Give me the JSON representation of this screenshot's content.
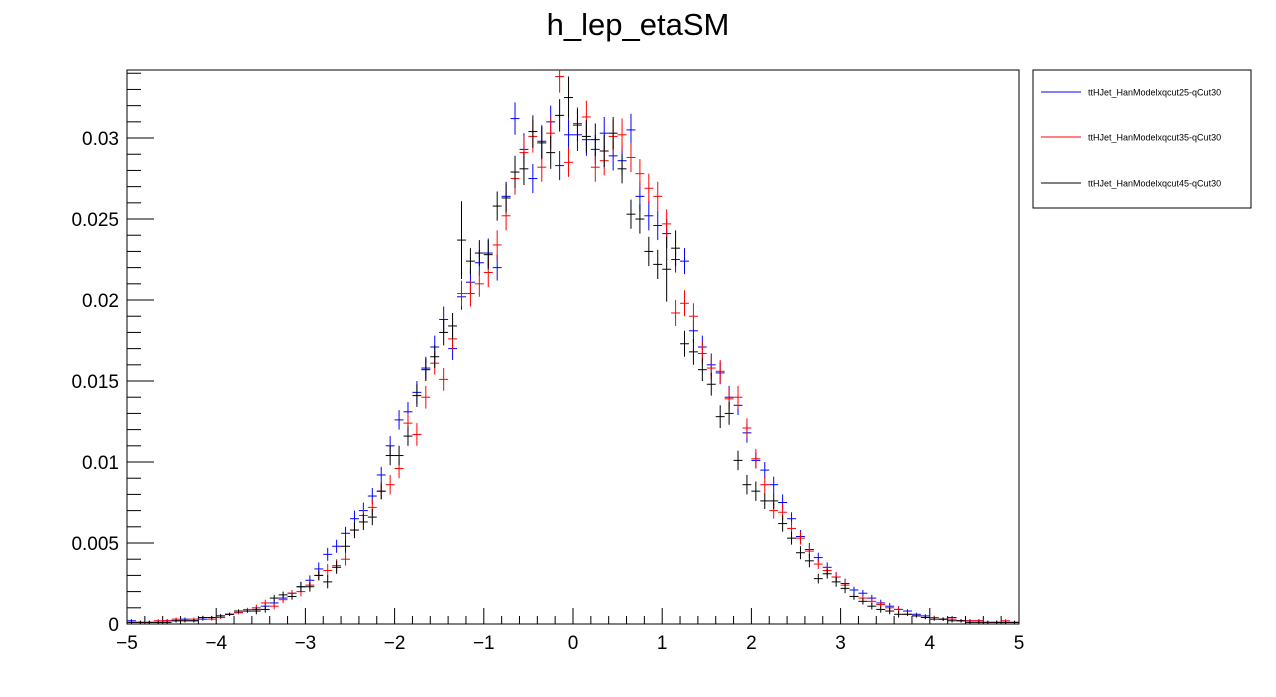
{
  "chart_data": {
    "type": "scatter",
    "title": "h_lep_etaSM",
    "xlabel": "",
    "ylabel": "",
    "xlim": [
      -5,
      5
    ],
    "ylim": [
      0,
      0.0342
    ],
    "x_ticks": [
      "−5",
      "−4",
      "−3",
      "−2",
      "−1",
      "0",
      "1",
      "2",
      "3",
      "4",
      "5"
    ],
    "y_ticks": [
      "0",
      "0.005",
      "0.01",
      "0.015",
      "0.02",
      "0.025",
      "0.03"
    ],
    "grid": false,
    "legend_position": "right",
    "bin_width": 0.1,
    "series": [
      {
        "name": "ttHJet_HanModelxqcut25-qCut30",
        "color": "#0000ff",
        "x": [
          -4.95,
          -4.85,
          -4.75,
          -4.65,
          -4.55,
          -4.45,
          -4.35,
          -4.25,
          -4.15,
          -4.05,
          -3.95,
          -3.85,
          -3.75,
          -3.65,
          -3.55,
          -3.45,
          -3.35,
          -3.25,
          -3.15,
          -3.05,
          -2.95,
          -2.85,
          -2.75,
          -2.65,
          -2.55,
          -2.45,
          -2.35,
          -2.25,
          -2.15,
          -2.05,
          -1.95,
          -1.85,
          -1.75,
          -1.65,
          -1.55,
          -1.45,
          -1.35,
          -1.25,
          -1.15,
          -1.05,
          -0.95,
          -0.85,
          -0.75,
          -0.65,
          -0.55,
          -0.45,
          -0.35,
          -0.25,
          -0.15,
          -0.05,
          0.05,
          0.15,
          0.25,
          0.35,
          0.45,
          0.55,
          0.65,
          0.75,
          0.85,
          0.95,
          1.05,
          1.15,
          1.25,
          1.35,
          1.45,
          1.55,
          1.65,
          1.75,
          1.85,
          1.95,
          2.05,
          2.15,
          2.25,
          2.35,
          2.45,
          2.55,
          2.65,
          2.75,
          2.85,
          2.95,
          3.05,
          3.15,
          3.25,
          3.35,
          3.45,
          3.55,
          3.65,
          3.75,
          3.85,
          3.95,
          4.05,
          4.15,
          4.25,
          4.35,
          4.45,
          4.55,
          4.65,
          4.75,
          4.85,
          4.95
        ],
        "y": [
          0.0002,
          0.0001,
          0.0001,
          0.0001,
          0.0002,
          0.0002,
          0.0003,
          0.0002,
          0.0003,
          0.0004,
          0.0005,
          0.0006,
          0.0007,
          0.0008,
          0.0009,
          0.0011,
          0.0013,
          0.0016,
          0.0019,
          0.0023,
          0.0027,
          0.0034,
          0.0043,
          0.0048,
          0.0056,
          0.0065,
          0.007,
          0.0079,
          0.0092,
          0.011,
          0.0126,
          0.0131,
          0.0143,
          0.0158,
          0.0171,
          0.0188,
          0.017,
          0.0202,
          0.0211,
          0.0223,
          0.0229,
          0.022,
          0.0264,
          0.0312,
          0.0293,
          0.0275,
          0.0298,
          0.031,
          0.0283,
          0.0302,
          0.0302,
          0.0299,
          0.0293,
          0.0303,
          0.0289,
          0.0286,
          0.0305,
          0.0264,
          0.0252,
          0.0246,
          0.0241,
          0.0225,
          0.0224,
          0.0181,
          0.0171,
          0.016,
          0.0155,
          0.014,
          0.0135,
          0.0118,
          0.0101,
          0.0095,
          0.0086,
          0.0075,
          0.0065,
          0.0054,
          0.0046,
          0.0041,
          0.0035,
          0.0029,
          0.0025,
          0.0021,
          0.0019,
          0.0016,
          0.0013,
          0.0011,
          0.0009,
          0.0008,
          0.0006,
          0.0005,
          0.0004,
          0.0003,
          0.0004,
          0.0002,
          0.0002,
          0.0002,
          0.0001,
          0.0001,
          0.0001,
          0.0001
        ],
        "yerr": [
          0.0001,
          0.0001,
          0.0001,
          0.0001,
          0.0001,
          0.0001,
          0.0001,
          0.0001,
          0.0001,
          0.0001,
          0.0001,
          0.0001,
          0.0001,
          0.0001,
          0.0002,
          0.0002,
          0.0002,
          0.0002,
          0.0002,
          0.0003,
          0.0003,
          0.0004,
          0.0004,
          0.0004,
          0.0004,
          0.0005,
          0.0005,
          0.0005,
          0.0005,
          0.0006,
          0.0006,
          0.0006,
          0.0007,
          0.0007,
          0.0007,
          0.0008,
          0.0007,
          0.0008,
          0.0008,
          0.0008,
          0.0009,
          0.0008,
          0.0009,
          0.001,
          0.001,
          0.0009,
          0.001,
          0.001,
          0.0009,
          0.001,
          0.001,
          0.001,
          0.0009,
          0.001,
          0.0009,
          0.0009,
          0.001,
          0.0009,
          0.0009,
          0.0009,
          0.0009,
          0.0008,
          0.0008,
          0.0007,
          0.0007,
          0.0007,
          0.0007,
          0.0007,
          0.0006,
          0.0006,
          0.0005,
          0.0005,
          0.0005,
          0.0005,
          0.0004,
          0.0004,
          0.0004,
          0.0003,
          0.0003,
          0.0003,
          0.0003,
          0.0002,
          0.0002,
          0.0002,
          0.0002,
          0.0002,
          0.0002,
          0.0001,
          0.0001,
          0.0001,
          0.0001,
          0.0001,
          0.0001,
          0.0001,
          0.0001,
          0.0001,
          0.0001,
          0.0001,
          0.0001,
          0.0001
        ]
      },
      {
        "name": "ttHJet_HanModelxqcut35-qCut30",
        "color": "#ff0000",
        "x": [
          -4.95,
          -4.85,
          -4.75,
          -4.65,
          -4.55,
          -4.45,
          -4.35,
          -4.25,
          -4.15,
          -4.05,
          -3.95,
          -3.85,
          -3.75,
          -3.65,
          -3.55,
          -3.45,
          -3.35,
          -3.25,
          -3.15,
          -3.05,
          -2.95,
          -2.85,
          -2.75,
          -2.65,
          -2.55,
          -2.45,
          -2.35,
          -2.25,
          -2.15,
          -2.05,
          -1.95,
          -1.85,
          -1.75,
          -1.65,
          -1.55,
          -1.45,
          -1.35,
          -1.25,
          -1.15,
          -1.05,
          -0.95,
          -0.85,
          -0.75,
          -0.65,
          -0.55,
          -0.45,
          -0.35,
          -0.25,
          -0.15,
          -0.05,
          0.05,
          0.15,
          0.25,
          0.35,
          0.45,
          0.55,
          0.65,
          0.75,
          0.85,
          0.95,
          1.05,
          1.15,
          1.25,
          1.35,
          1.45,
          1.55,
          1.65,
          1.75,
          1.85,
          1.95,
          2.05,
          2.15,
          2.25,
          2.35,
          2.45,
          2.55,
          2.65,
          2.75,
          2.85,
          2.95,
          3.05,
          3.15,
          3.25,
          3.35,
          3.45,
          3.55,
          3.65,
          3.75,
          3.85,
          3.95,
          4.05,
          4.15,
          4.25,
          4.35,
          4.45,
          4.55,
          4.65,
          4.75,
          4.85,
          4.95
        ],
        "y": [
          0.0001,
          0.0001,
          0.0001,
          0.0002,
          0.0002,
          0.0003,
          0.0002,
          0.0003,
          0.0004,
          0.0003,
          0.0004,
          0.0006,
          0.0007,
          0.0009,
          0.001,
          0.0013,
          0.0011,
          0.0015,
          0.0019,
          0.002,
          0.0024,
          0.003,
          0.0033,
          0.0036,
          0.004,
          0.0058,
          0.0067,
          0.0072,
          0.0082,
          0.0086,
          0.0096,
          0.0124,
          0.0117,
          0.014,
          0.0161,
          0.0151,
          0.0176,
          0.0204,
          0.0204,
          0.021,
          0.0217,
          0.0234,
          0.0252,
          0.0275,
          0.0291,
          0.0301,
          0.0282,
          0.0303,
          0.0338,
          0.0285,
          0.0309,
          0.0313,
          0.0282,
          0.0286,
          0.0301,
          0.0302,
          0.0288,
          0.0278,
          0.0269,
          0.0264,
          0.0247,
          0.0192,
          0.0198,
          0.019,
          0.0167,
          0.0158,
          0.0156,
          0.0139,
          0.014,
          0.0121,
          0.0102,
          0.0086,
          0.007,
          0.0069,
          0.0059,
          0.0053,
          0.0045,
          0.0037,
          0.0033,
          0.0029,
          0.0024,
          0.0017,
          0.0016,
          0.0014,
          0.0012,
          0.001,
          0.0009,
          0.0006,
          0.0005,
          0.0004,
          0.0004,
          0.0003,
          0.0003,
          0.0002,
          0.0002,
          0.0002,
          0.0001,
          0.0001,
          0.0002,
          0.0001
        ],
        "yerr": [
          0.0001,
          0.0001,
          0.0001,
          0.0001,
          0.0001,
          0.0001,
          0.0001,
          0.0001,
          0.0001,
          0.0001,
          0.0001,
          0.0001,
          0.0001,
          0.0001,
          0.0002,
          0.0002,
          0.0002,
          0.0002,
          0.0002,
          0.0003,
          0.0003,
          0.0003,
          0.0004,
          0.0004,
          0.0004,
          0.0005,
          0.0005,
          0.0005,
          0.0005,
          0.0006,
          0.0006,
          0.0006,
          0.0007,
          0.0007,
          0.0007,
          0.0007,
          0.0007,
          0.0008,
          0.0008,
          0.0008,
          0.0009,
          0.0009,
          0.0009,
          0.001,
          0.001,
          0.001,
          0.0009,
          0.001,
          0.001,
          0.0009,
          0.001,
          0.001,
          0.0009,
          0.0009,
          0.001,
          0.001,
          0.0009,
          0.0009,
          0.0009,
          0.0009,
          0.0009,
          0.0008,
          0.0008,
          0.0008,
          0.0007,
          0.0007,
          0.0007,
          0.0007,
          0.0007,
          0.0006,
          0.0006,
          0.0005,
          0.0005,
          0.0005,
          0.0004,
          0.0004,
          0.0004,
          0.0003,
          0.0003,
          0.0003,
          0.0003,
          0.0002,
          0.0002,
          0.0002,
          0.0002,
          0.0002,
          0.0002,
          0.0001,
          0.0001,
          0.0001,
          0.0001,
          0.0001,
          0.0001,
          0.0001,
          0.0001,
          0.0001,
          0.0001,
          0.0001,
          0.0001,
          0.0001
        ]
      },
      {
        "name": "ttHJet_HanModelxqcut45-qCut30",
        "color": "#000000",
        "x": [
          -4.95,
          -4.85,
          -4.75,
          -4.65,
          -4.55,
          -4.45,
          -4.35,
          -4.25,
          -4.15,
          -4.05,
          -3.95,
          -3.85,
          -3.75,
          -3.65,
          -3.55,
          -3.45,
          -3.35,
          -3.25,
          -3.15,
          -3.05,
          -2.95,
          -2.85,
          -2.75,
          -2.65,
          -2.55,
          -2.45,
          -2.35,
          -2.25,
          -2.15,
          -2.05,
          -1.95,
          -1.85,
          -1.75,
          -1.65,
          -1.55,
          -1.45,
          -1.35,
          -1.25,
          -1.15,
          -1.05,
          -0.95,
          -0.85,
          -0.75,
          -0.65,
          -0.55,
          -0.45,
          -0.35,
          -0.25,
          -0.15,
          -0.05,
          0.05,
          0.15,
          0.25,
          0.35,
          0.45,
          0.55,
          0.65,
          0.75,
          0.85,
          0.95,
          1.05,
          1.15,
          1.25,
          1.35,
          1.45,
          1.55,
          1.65,
          1.75,
          1.85,
          1.95,
          2.05,
          2.15,
          2.25,
          2.35,
          2.45,
          2.55,
          2.65,
          2.75,
          2.85,
          2.95,
          3.05,
          3.15,
          3.25,
          3.35,
          3.45,
          3.55,
          3.65,
          3.75,
          3.85,
          3.95,
          4.05,
          4.15,
          4.25,
          4.35,
          4.45,
          4.55,
          4.65,
          4.75,
          4.85,
          4.95
        ],
        "y": [
          0.0001,
          0.0001,
          0.0001,
          0.0001,
          0.0001,
          0.0002,
          0.0002,
          0.0002,
          0.0004,
          0.0004,
          0.0005,
          0.0006,
          0.0008,
          0.0008,
          0.0008,
          0.0009,
          0.0016,
          0.0018,
          0.0017,
          0.0023,
          0.0023,
          0.003,
          0.0026,
          0.0035,
          0.0048,
          0.0058,
          0.0063,
          0.0066,
          0.0082,
          0.0104,
          0.0104,
          0.0116,
          0.0141,
          0.0157,
          0.0165,
          0.018,
          0.0184,
          0.0237,
          0.0224,
          0.0229,
          0.0228,
          0.0258,
          0.0263,
          0.0279,
          0.0281,
          0.0304,
          0.0297,
          0.0291,
          0.0314,
          0.0325,
          0.0308,
          0.0301,
          0.0299,
          0.0292,
          0.0303,
          0.0281,
          0.0253,
          0.025,
          0.023,
          0.0222,
          0.0219,
          0.0232,
          0.0173,
          0.0168,
          0.0157,
          0.0148,
          0.0128,
          0.013,
          0.0101,
          0.0086,
          0.0082,
          0.0076,
          0.0076,
          0.0062,
          0.0053,
          0.0044,
          0.0039,
          0.0028,
          0.0031,
          0.0026,
          0.0022,
          0.0017,
          0.0014,
          0.0011,
          0.0009,
          0.0008,
          0.0006,
          0.0006,
          0.0005,
          0.0004,
          0.0003,
          0.0003,
          0.0002,
          0.0002,
          0.0001,
          0.0001,
          0.0001,
          0.0001,
          0.0001,
          0.0001
        ],
        "yerr": [
          0.0001,
          0.0001,
          0.0001,
          0.0001,
          0.0001,
          0.0001,
          0.0001,
          0.0001,
          0.0001,
          0.0001,
          0.0001,
          0.0001,
          0.0001,
          0.0001,
          0.0002,
          0.0002,
          0.0002,
          0.0002,
          0.0002,
          0.0003,
          0.0003,
          0.0003,
          0.0004,
          0.0004,
          0.0004,
          0.0005,
          0.0005,
          0.0005,
          0.0005,
          0.0006,
          0.0006,
          0.0006,
          0.0007,
          0.0007,
          0.0007,
          0.0008,
          0.0008,
          0.0024,
          0.0008,
          0.0008,
          0.0009,
          0.0009,
          0.0009,
          0.001,
          0.001,
          0.001,
          0.001,
          0.001,
          0.001,
          0.0013,
          0.001,
          0.001,
          0.001,
          0.001,
          0.001,
          0.0009,
          0.0009,
          0.0009,
          0.0009,
          0.0009,
          0.002,
          0.0011,
          0.0008,
          0.0008,
          0.0007,
          0.0007,
          0.0007,
          0.0007,
          0.0006,
          0.0006,
          0.0006,
          0.0005,
          0.0005,
          0.0005,
          0.0004,
          0.0004,
          0.0004,
          0.0003,
          0.0003,
          0.0003,
          0.0003,
          0.0002,
          0.0002,
          0.0002,
          0.0002,
          0.0002,
          0.0002,
          0.0001,
          0.0001,
          0.0001,
          0.0001,
          0.0001,
          0.0001,
          0.0001,
          0.0001,
          0.0001,
          0.0001,
          0.0001,
          0.0001,
          0.0001
        ]
      }
    ]
  }
}
